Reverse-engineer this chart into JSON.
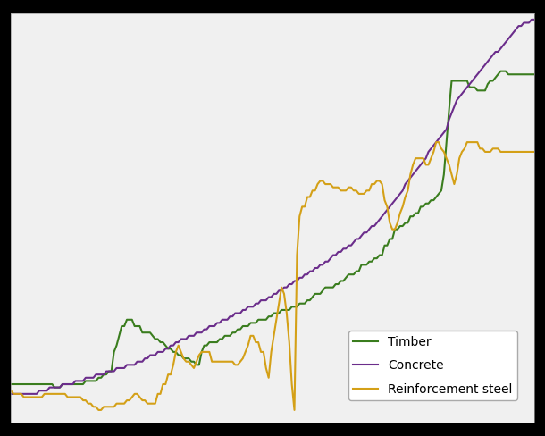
{
  "timber_color": "#3a7d1e",
  "concrete_color": "#6b2d8b",
  "steel_color": "#d4a017",
  "background_color": "#f0f0f0",
  "grid_color": "#ffffff",
  "legend_labels": [
    "Timber",
    "Concrete",
    "Reinforcement steel"
  ],
  "xlim": [
    0,
    203
  ],
  "ylim": [
    88,
    215
  ],
  "figsize": [
    6.1,
    4.88
  ],
  "dpi": 100,
  "timber": [
    100,
    100,
    100,
    100,
    100,
    100,
    100,
    100,
    100,
    100,
    100,
    100,
    100,
    100,
    100,
    100,
    100,
    99,
    99,
    99,
    100,
    100,
    100,
    100,
    100,
    100,
    100,
    100,
    100,
    101,
    101,
    101,
    101,
    101,
    102,
    102,
    103,
    103,
    104,
    104,
    110,
    112,
    115,
    118,
    118,
    120,
    120,
    120,
    118,
    118,
    118,
    116,
    116,
    116,
    116,
    115,
    114,
    114,
    113,
    113,
    112,
    111,
    111,
    110,
    110,
    109,
    109,
    108,
    108,
    108,
    107,
    107,
    106,
    106,
    110,
    112,
    112,
    113,
    113,
    113,
    113,
    114,
    114,
    115,
    115,
    115,
    116,
    116,
    117,
    117,
    118,
    118,
    118,
    119,
    119,
    119,
    120,
    120,
    120,
    120,
    121,
    121,
    122,
    122,
    122,
    123,
    123,
    123,
    123,
    124,
    124,
    124,
    125,
    125,
    125,
    126,
    126,
    127,
    128,
    128,
    128,
    129,
    130,
    130,
    130,
    130,
    131,
    131,
    132,
    132,
    133,
    134,
    134,
    134,
    135,
    135,
    137,
    137,
    137,
    138,
    138,
    139,
    139,
    140,
    140,
    143,
    143,
    145,
    145,
    148,
    148,
    149,
    149,
    150,
    150,
    152,
    152,
    153,
    153,
    155,
    155,
    156,
    156,
    157,
    157,
    158,
    159,
    160,
    165,
    175,
    185,
    194,
    194,
    194,
    194,
    194,
    194,
    194,
    192,
    192,
    192,
    191,
    191,
    191,
    191,
    193,
    194,
    194,
    195,
    196,
    197,
    197,
    197,
    196,
    196,
    196,
    196,
    196,
    196,
    196,
    196,
    196,
    196,
    196
  ],
  "concrete": [
    97,
    97,
    97,
    97,
    97,
    97,
    97,
    97,
    97,
    97,
    97,
    98,
    98,
    98,
    98,
    99,
    99,
    99,
    99,
    99,
    100,
    100,
    100,
    100,
    100,
    101,
    101,
    101,
    101,
    102,
    102,
    102,
    102,
    103,
    103,
    103,
    103,
    104,
    104,
    104,
    104,
    105,
    105,
    105,
    105,
    106,
    106,
    106,
    106,
    107,
    107,
    107,
    108,
    108,
    109,
    109,
    109,
    110,
    110,
    110,
    111,
    111,
    112,
    112,
    113,
    113,
    114,
    114,
    114,
    115,
    115,
    115,
    116,
    116,
    116,
    117,
    117,
    118,
    118,
    118,
    119,
    119,
    120,
    120,
    120,
    121,
    121,
    122,
    122,
    122,
    123,
    123,
    124,
    124,
    124,
    125,
    125,
    126,
    126,
    126,
    127,
    127,
    128,
    128,
    129,
    129,
    130,
    130,
    131,
    131,
    132,
    132,
    133,
    133,
    134,
    134,
    135,
    135,
    136,
    136,
    137,
    137,
    138,
    138,
    139,
    140,
    140,
    141,
    141,
    142,
    142,
    143,
    143,
    144,
    145,
    145,
    146,
    147,
    147,
    148,
    149,
    149,
    150,
    151,
    152,
    153,
    154,
    155,
    156,
    157,
    158,
    159,
    160,
    162,
    163,
    164,
    165,
    166,
    167,
    168,
    169,
    170,
    172,
    173,
    174,
    175,
    176,
    177,
    178,
    179,
    182,
    184,
    186,
    188,
    189,
    190,
    191,
    192,
    193,
    194,
    195,
    196,
    197,
    198,
    199,
    200,
    201,
    202,
    203,
    203,
    204,
    205,
    206,
    207,
    208,
    209,
    210,
    211,
    211,
    212,
    212,
    212,
    213,
    213
  ],
  "steel": [
    98,
    97,
    97,
    97,
    97,
    96,
    96,
    96,
    96,
    96,
    96,
    96,
    96,
    97,
    97,
    97,
    97,
    97,
    97,
    97,
    97,
    97,
    96,
    96,
    96,
    96,
    96,
    96,
    95,
    95,
    94,
    94,
    93,
    93,
    92,
    92,
    93,
    93,
    93,
    93,
    93,
    94,
    94,
    94,
    94,
    95,
    95,
    96,
    97,
    97,
    96,
    95,
    95,
    94,
    94,
    94,
    94,
    97,
    97,
    100,
    100,
    103,
    103,
    106,
    110,
    112,
    110,
    108,
    107,
    107,
    106,
    105,
    107,
    109,
    110,
    110,
    110,
    110,
    107,
    107,
    107,
    107,
    107,
    107,
    107,
    107,
    107,
    106,
    106,
    107,
    108,
    110,
    112,
    115,
    115,
    113,
    113,
    110,
    110,
    105,
    102,
    110,
    115,
    120,
    125,
    130,
    128,
    122,
    113,
    100,
    92,
    140,
    152,
    155,
    155,
    158,
    158,
    160,
    160,
    162,
    163,
    163,
    162,
    162,
    162,
    161,
    161,
    161,
    160,
    160,
    160,
    161,
    161,
    160,
    160,
    159,
    159,
    159,
    160,
    160,
    162,
    162,
    163,
    163,
    162,
    157,
    155,
    150,
    148,
    148,
    150,
    153,
    155,
    158,
    160,
    165,
    168,
    170,
    170,
    170,
    170,
    168,
    168,
    170,
    172,
    175,
    175,
    173,
    172,
    170,
    168,
    165,
    162,
    165,
    170,
    172,
    173,
    175,
    175,
    175,
    175,
    175,
    173,
    173,
    172,
    172,
    172,
    173,
    173,
    173,
    172,
    172,
    172,
    172,
    172,
    172,
    172,
    172,
    172,
    172,
    172,
    172,
    172,
    172
  ]
}
